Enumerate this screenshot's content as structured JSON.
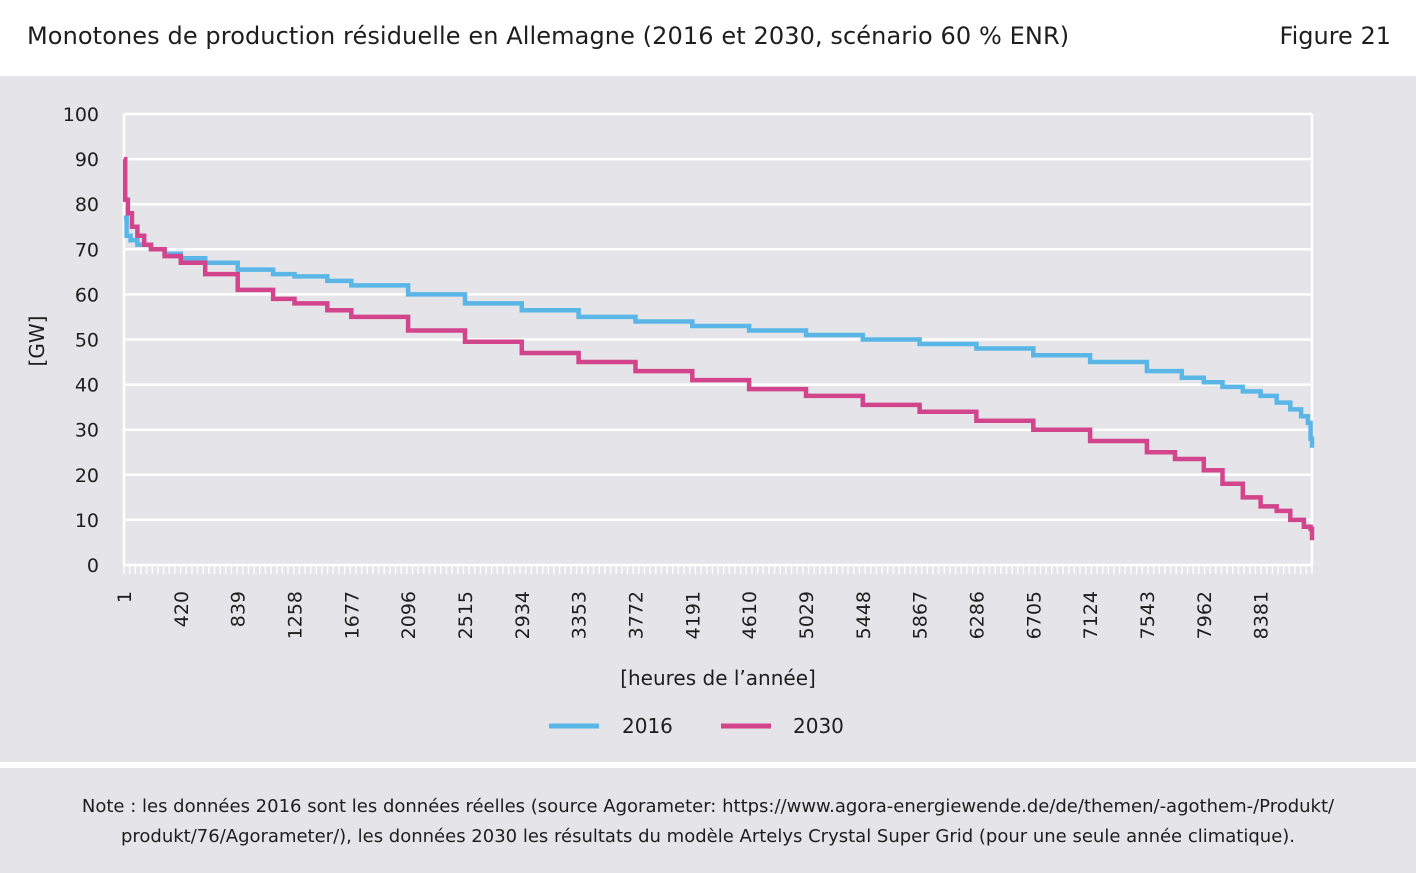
{
  "header": {
    "title": "Monotones de production résiduelle en Allemagne (2016 et 2030, scénario 60 % ENR)",
    "figure_label": "Figure 21"
  },
  "note": {
    "line1": "Note : les données 2016 sont les données réelles (source Agorameter: https://www.agora-energiewende.de/de/themen/-agothem-/Produkt/",
    "line2": "produkt/76/Agorameter/), les données 2030 les résultats du modèle Artelys Crystal Super Grid (pour une seule année climatique)."
  },
  "colors": {
    "series_2016": "#5ab6e6",
    "series_2030": "#d2448c",
    "panel": "#e5e5e9",
    "grid": "#ffffff"
  },
  "chart_data": {
    "type": "line",
    "title": "Monotones de production résiduelle en Allemagne (2016 et 2030, scénario 60 % ENR)",
    "xlabel": "[heures de l’année]",
    "ylabel": "[GW]",
    "ylim": [
      0,
      100
    ],
    "xlim": [
      1,
      8760
    ],
    "yticks": [
      0,
      10,
      20,
      30,
      40,
      50,
      60,
      70,
      80,
      90,
      100
    ],
    "xtick_labels": [
      "1",
      "420",
      "839",
      "1258",
      "1677",
      "2096",
      "2515",
      "2934",
      "3353",
      "3772",
      "4191",
      "4610",
      "5029",
      "5448",
      "5867",
      "6286",
      "6705",
      "7124",
      "7543",
      "7962",
      "8381"
    ],
    "legend": "bottom-center",
    "series": [
      {
        "name": "2016",
        "x": [
          1,
          20,
          50,
          100,
          200,
          300,
          420,
          600,
          839,
          1100,
          1258,
          1500,
          1677,
          2096,
          2515,
          2934,
          3353,
          3772,
          4191,
          4610,
          5029,
          5448,
          5867,
          6286,
          6705,
          7124,
          7543,
          7800,
          7962,
          8100,
          8250,
          8381,
          8500,
          8600,
          8680,
          8730,
          8750,
          8760
        ],
        "values": [
          77,
          73,
          72,
          71,
          70,
          69,
          68,
          67,
          65.5,
          64.5,
          64,
          63,
          62,
          60,
          58,
          56.5,
          55,
          54,
          53,
          52,
          51,
          50,
          49,
          48,
          46.5,
          45,
          43,
          41.5,
          40.5,
          39.5,
          38.5,
          37.5,
          36,
          34.5,
          33,
          31.5,
          28,
          26
        ]
      },
      {
        "name": "2030",
        "x": [
          1,
          10,
          30,
          60,
          100,
          150,
          200,
          300,
          420,
          600,
          839,
          1100,
          1258,
          1500,
          1677,
          2096,
          2515,
          2934,
          3353,
          3772,
          4191,
          4610,
          5029,
          5448,
          5867,
          6286,
          6705,
          7124,
          7543,
          7750,
          7962,
          8100,
          8250,
          8381,
          8500,
          8600,
          8700,
          8750,
          8760
        ],
        "values": [
          90,
          81,
          78,
          75,
          73,
          71,
          70,
          68.5,
          67,
          64.5,
          61,
          59,
          58,
          56.5,
          55,
          52,
          49.5,
          47,
          45,
          43,
          41,
          39,
          37.5,
          35.5,
          34,
          32,
          30,
          27.5,
          25,
          23.5,
          21,
          18,
          15,
          13,
          12,
          10,
          8.5,
          8,
          5.5
        ]
      }
    ]
  }
}
